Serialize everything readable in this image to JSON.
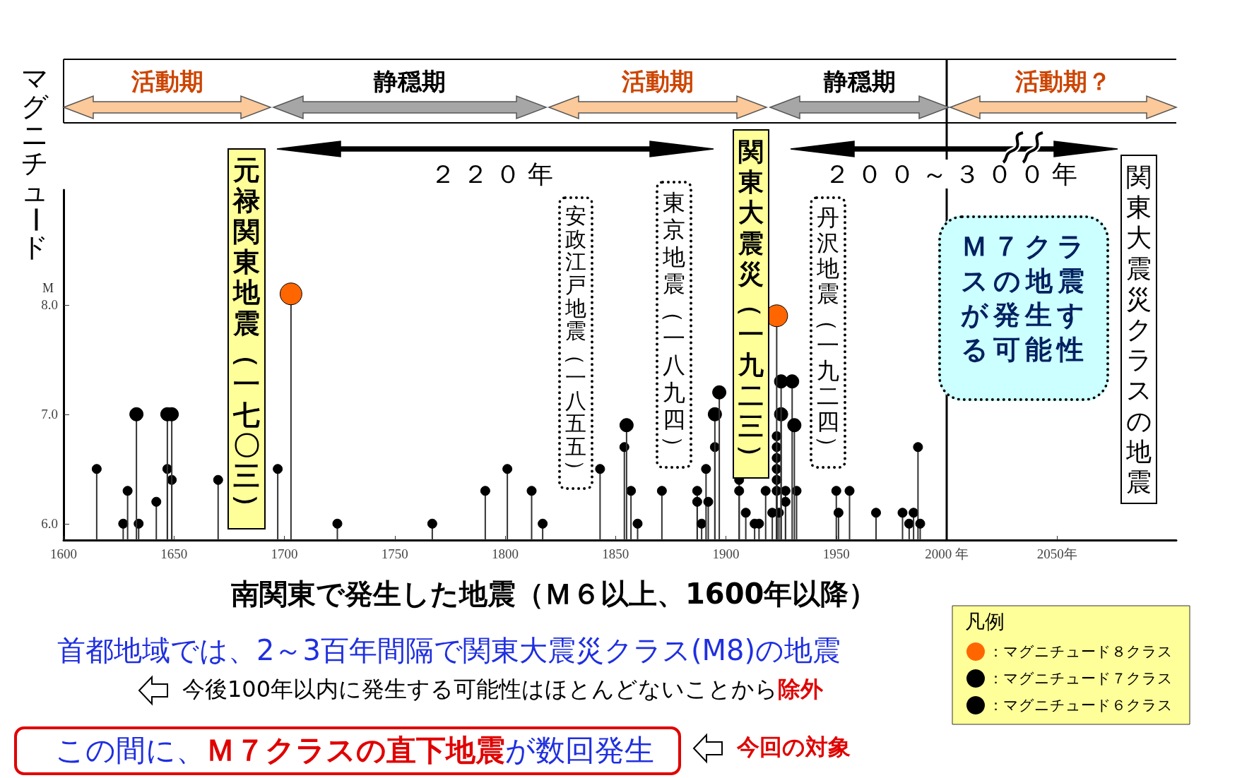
{
  "chart_data": {
    "type": "lollipop",
    "ylabel": "マグニチュード",
    "xlabel": "南関東で発生した地震（Ｍ６以上、1600年以降）",
    "legend_title": "凡例",
    "xlim": [
      1600,
      2104
    ],
    "ylim": [
      5.85,
      9.05
    ],
    "xticks": [
      1600,
      1650,
      1700,
      1750,
      1800,
      1850,
      1900,
      1950,
      {
        "value": 2000,
        "label": "2000 年"
      },
      {
        "value": 2050,
        "label": "2050年"
      }
    ],
    "yticks": [
      {
        "value": 6,
        "label": "6.0"
      },
      {
        "value": 7,
        "label": "7.0"
      },
      {
        "value": 8,
        "label": "8.0"
      }
    ],
    "marker": "circle",
    "grid": false,
    "legend": "bottom right",
    "series": [
      {
        "name": "：マグニチュード８クラス",
        "color": "#ff6600",
        "x": [
          1703,
          1923
        ],
        "values": [
          8.1,
          7.9
        ]
      },
      {
        "name": "：マグニチュード７クラス",
        "color": "#000000",
        "x": [
          1633,
          1647,
          1649,
          1855,
          1895,
          1897,
          1925,
          1925,
          1930,
          1931
        ],
        "values": [
          7.0,
          7.0,
          7.0,
          6.9,
          7.0,
          7.2,
          7.0,
          7.3,
          7.3,
          6.9
        ]
      },
      {
        "name": "：マグニチュード６クラス",
        "color": "#000000",
        "x": [
          1615,
          1627,
          1629,
          1634,
          1642,
          1647,
          1649,
          1670,
          1697,
          1724,
          1767,
          1791,
          1801,
          1812,
          1817,
          1843,
          1854,
          1857,
          1860,
          1871,
          1887,
          1887,
          1889,
          1891,
          1892,
          1895,
          1906,
          1906,
          1909,
          1913,
          1915,
          1918,
          1923,
          1923,
          1923,
          1923,
          1923,
          1923,
          1927,
          1932,
          1927,
          1921,
          1924,
          1950,
          1951,
          1956,
          1968,
          1980,
          1983,
          1985,
          1987,
          1988
        ],
        "values": [
          6.5,
          6.0,
          6.3,
          6.0,
          6.2,
          6.5,
          6.4,
          6.4,
          6.5,
          6.0,
          6.0,
          6.3,
          6.5,
          6.3,
          6.0,
          6.5,
          6.7,
          6.3,
          6.0,
          6.3,
          6.3,
          6.2,
          6.0,
          6.5,
          6.2,
          6.7,
          6.4,
          6.3,
          6.1,
          6.0,
          6.0,
          6.3,
          6.8,
          6.7,
          6.6,
          6.5,
          6.4,
          6.3,
          6.3,
          6.3,
          6.2,
          6.1,
          6.1,
          6.3,
          6.1,
          6.3,
          6.1,
          6.1,
          6.0,
          6.1,
          6.7,
          6.0
        ]
      }
    ],
    "ref_lines": [
      {
        "axis": "x",
        "value": 2000,
        "color": "#000000"
      }
    ],
    "annotations": [
      "M",
      "元禄関東地震（一七〇三）",
      "安政江戸地震（一八五五）",
      "東京地震（一八九四）",
      "関東大震災（一九二三）",
      "丹沢地震（一九二四）",
      "Ｍ７クラスの地震が発生する可能性",
      "関東大震災クラスの地震",
      "活動期",
      "静穏期",
      "活動期",
      "静穏期",
      "活動期？",
      "２２０年",
      "２００～３００年",
      "首都地域では、2～3百年間隔で関東大震災クラス(M8)の地震",
      "今後100年以内に発生する可能性はほとんどないことから",
      "除外",
      "この間に、",
      "Ｍ７クラスの直下地震",
      "が数回発生",
      "今回の対象"
    ]
  }
}
